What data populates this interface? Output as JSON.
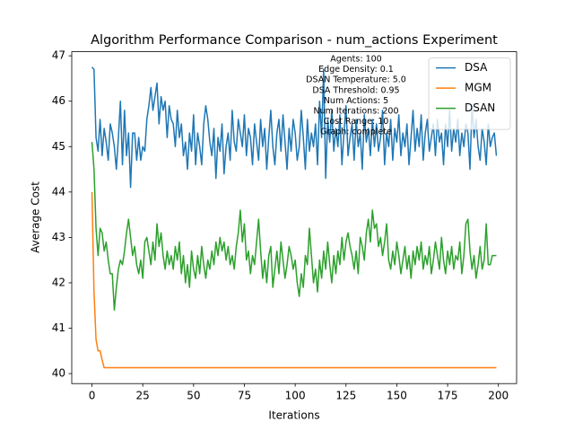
{
  "chart_data": {
    "type": "line",
    "title": "Algorithm Performance Comparison - num_actions Experiment",
    "xlabel": "Iterations",
    "ylabel": "Average Cost",
    "x": [
      0,
      1,
      2,
      3,
      4,
      5,
      6,
      7,
      8,
      9,
      10,
      11,
      12,
      13,
      14,
      15,
      16,
      17,
      18,
      19,
      20,
      21,
      22,
      23,
      24,
      25,
      26,
      27,
      28,
      29,
      30,
      31,
      32,
      33,
      34,
      35,
      36,
      37,
      38,
      39,
      40,
      41,
      42,
      43,
      44,
      45,
      46,
      47,
      48,
      49,
      50,
      51,
      52,
      53,
      54,
      55,
      56,
      57,
      58,
      59,
      60,
      61,
      62,
      63,
      64,
      65,
      66,
      67,
      68,
      69,
      70,
      71,
      72,
      73,
      74,
      75,
      76,
      77,
      78,
      79,
      80,
      81,
      82,
      83,
      84,
      85,
      86,
      87,
      88,
      89,
      90,
      91,
      92,
      93,
      94,
      95,
      96,
      97,
      98,
      99,
      100,
      101,
      102,
      103,
      104,
      105,
      106,
      107,
      108,
      109,
      110,
      111,
      112,
      113,
      114,
      115,
      116,
      117,
      118,
      119,
      120,
      121,
      122,
      123,
      124,
      125,
      126,
      127,
      128,
      129,
      130,
      131,
      132,
      133,
      134,
      135,
      136,
      137,
      138,
      139,
      140,
      141,
      142,
      143,
      144,
      145,
      146,
      147,
      148,
      149,
      150,
      151,
      152,
      153,
      154,
      155,
      156,
      157,
      158,
      159,
      160,
      161,
      162,
      163,
      164,
      165,
      166,
      167,
      168,
      169,
      170,
      171,
      172,
      173,
      174,
      175,
      176,
      177,
      178,
      179,
      180,
      181,
      182,
      183,
      184,
      185,
      186,
      187,
      188,
      189,
      190,
      191,
      192,
      193,
      194,
      195,
      196,
      197,
      198,
      199
    ],
    "xlim": [
      -9.95,
      208.95
    ],
    "xticks": [
      0,
      25,
      50,
      75,
      100,
      125,
      150,
      175,
      200
    ],
    "ylim": [
      39.78,
      47.09
    ],
    "yticks": [
      40,
      41,
      42,
      43,
      44,
      45,
      46,
      47
    ],
    "grid": false,
    "legend": "upper right",
    "series": [
      {
        "name": "DSA",
        "color": "#1f77b4",
        "values": [
          46.75,
          46.7,
          45.2,
          44.9,
          45.6,
          44.8,
          45.4,
          45.1,
          44.7,
          45.5,
          45.3,
          45.0,
          44.5,
          45.2,
          46.0,
          44.6,
          45.8,
          44.8,
          45.3,
          44.1,
          45.3,
          45.3,
          44.7,
          45.2,
          44.7,
          45.0,
          44.9,
          45.6,
          45.9,
          46.3,
          45.8,
          46.1,
          46.4,
          45.5,
          46.1,
          45.8,
          46.0,
          45.2,
          45.9,
          45.6,
          45.5,
          45.0,
          45.8,
          45.2,
          45.5,
          44.8,
          45.1,
          44.5,
          45.3,
          44.9,
          45.7,
          44.6,
          45.3,
          45.0,
          44.6,
          45.5,
          45.9,
          45.6,
          45.1,
          44.8,
          45.4,
          44.3,
          45.2,
          44.9,
          45.5,
          44.4,
          45.0,
          45.3,
          44.7,
          45.8,
          45.1,
          44.9,
          45.6,
          45.3,
          45.0,
          45.7,
          44.8,
          45.4,
          45.2,
          44.6,
          45.5,
          45.1,
          44.7,
          45.6,
          45.0,
          45.4,
          44.5,
          45.2,
          45.8,
          45.0,
          44.6,
          45.3,
          45.6,
          44.9,
          45.7,
          45.1,
          44.5,
          45.4,
          44.9,
          45.6,
          45.3,
          44.7,
          45.0,
          45.8,
          45.2,
          44.5,
          45.6,
          44.9,
          45.3,
          45.0,
          45.5,
          44.6,
          46.0,
          45.2,
          46.7,
          44.3,
          45.6,
          45.1,
          45.8,
          44.9,
          45.4,
          45.0,
          45.7,
          44.6,
          45.3,
          45.9,
          44.8,
          45.2,
          45.5,
          44.7,
          45.6,
          45.0,
          45.3,
          44.5,
          45.7,
          45.1,
          45.4,
          44.8,
          45.6,
          45.0,
          45.5,
          44.9,
          45.2,
          45.8,
          44.6,
          45.3,
          45.0,
          45.6,
          44.7,
          45.4,
          45.1,
          45.7,
          44.8,
          45.3,
          45.0,
          45.5,
          44.6,
          45.2,
          45.8,
          44.9,
          45.4,
          45.0,
          45.7,
          44.7,
          45.3,
          45.6,
          44.9,
          45.2,
          45.5,
          44.8,
          45.6,
          45.1,
          45.3,
          44.6,
          45.5,
          45.0,
          45.8,
          44.9,
          45.4,
          45.1,
          45.6,
          44.8,
          45.3,
          45.0,
          45.5,
          45.3,
          44.5,
          45.9,
          45.2,
          45.6,
          45.0,
          44.7,
          45.4,
          45.1,
          44.6,
          45.5,
          45.0,
          45.2,
          45.3,
          44.8
        ]
      },
      {
        "name": "MGM",
        "color": "#ff7f0e",
        "values": [
          44.0,
          41.8,
          40.75,
          40.5,
          40.5,
          40.3,
          40.13,
          40.13,
          40.13,
          40.13,
          40.13,
          40.13,
          40.13,
          40.13,
          40.13,
          40.13,
          40.13,
          40.13,
          40.13,
          40.13,
          40.13,
          40.13,
          40.13,
          40.13,
          40.13,
          40.13,
          40.13,
          40.13,
          40.13,
          40.13,
          40.13,
          40.13,
          40.13,
          40.13,
          40.13,
          40.13,
          40.13,
          40.13,
          40.13,
          40.13,
          40.13,
          40.13,
          40.13,
          40.13,
          40.13,
          40.13,
          40.13,
          40.13,
          40.13,
          40.13,
          40.13,
          40.13,
          40.13,
          40.13,
          40.13,
          40.13,
          40.13,
          40.13,
          40.13,
          40.13,
          40.13,
          40.13,
          40.13,
          40.13,
          40.13,
          40.13,
          40.13,
          40.13,
          40.13,
          40.13,
          40.13,
          40.13,
          40.13,
          40.13,
          40.13,
          40.13,
          40.13,
          40.13,
          40.13,
          40.13,
          40.13,
          40.13,
          40.13,
          40.13,
          40.13,
          40.13,
          40.13,
          40.13,
          40.13,
          40.13,
          40.13,
          40.13,
          40.13,
          40.13,
          40.13,
          40.13,
          40.13,
          40.13,
          40.13,
          40.13,
          40.13,
          40.13,
          40.13,
          40.13,
          40.13,
          40.13,
          40.13,
          40.13,
          40.13,
          40.13,
          40.13,
          40.13,
          40.13,
          40.13,
          40.13,
          40.13,
          40.13,
          40.13,
          40.13,
          40.13,
          40.13,
          40.13,
          40.13,
          40.13,
          40.13,
          40.13,
          40.13,
          40.13,
          40.13,
          40.13,
          40.13,
          40.13,
          40.13,
          40.13,
          40.13,
          40.13,
          40.13,
          40.13,
          40.13,
          40.13,
          40.13,
          40.13,
          40.13,
          40.13,
          40.13,
          40.13,
          40.13,
          40.13,
          40.13,
          40.13,
          40.13,
          40.13,
          40.13,
          40.13,
          40.13,
          40.13,
          40.13,
          40.13,
          40.13,
          40.13,
          40.13,
          40.13,
          40.13,
          40.13,
          40.13,
          40.13,
          40.13,
          40.13,
          40.13,
          40.13,
          40.13,
          40.13,
          40.13,
          40.13,
          40.13,
          40.13,
          40.13,
          40.13,
          40.13,
          40.13,
          40.13,
          40.13,
          40.13,
          40.13,
          40.13,
          40.13,
          40.13,
          40.13,
          40.13,
          40.13,
          40.13,
          40.13,
          40.13,
          40.13,
          40.13,
          40.13,
          40.13,
          40.13,
          40.13,
          40.13
        ]
      },
      {
        "name": "DSAN",
        "color": "#2ca02c",
        "values": [
          45.1,
          44.5,
          43.2,
          42.6,
          43.2,
          43.1,
          42.7,
          42.9,
          42.5,
          42.2,
          42.2,
          41.4,
          41.9,
          42.3,
          42.5,
          42.4,
          42.7,
          43.1,
          43.4,
          43.0,
          42.6,
          42.8,
          42.4,
          42.2,
          42.5,
          42.1,
          42.9,
          43.0,
          42.7,
          42.4,
          42.9,
          42.5,
          43.3,
          42.8,
          43.1,
          42.6,
          42.3,
          42.7,
          42.4,
          42.6,
          42.3,
          42.8,
          42.5,
          42.9,
          42.2,
          42.6,
          42.0,
          42.4,
          41.9,
          42.7,
          42.3,
          42.1,
          42.6,
          42.2,
          42.8,
          42.4,
          42.1,
          42.5,
          42.3,
          42.7,
          42.4,
          42.9,
          42.6,
          43.0,
          42.7,
          42.9,
          42.5,
          42.8,
          42.4,
          42.6,
          42.3,
          42.8,
          43.1,
          43.6,
          42.9,
          43.3,
          42.5,
          42.7,
          42.2,
          42.6,
          42.4,
          42.9,
          43.4,
          42.7,
          42.1,
          42.5,
          42.0,
          42.6,
          42.8,
          41.9,
          42.3,
          42.7,
          42.2,
          42.9,
          42.5,
          42.1,
          42.4,
          42.8,
          42.6,
          42.3,
          42.5,
          42.0,
          41.7,
          42.2,
          41.9,
          42.6,
          42.4,
          43.2,
          42.6,
          42.0,
          42.3,
          41.8,
          42.5,
          42.1,
          42.7,
          42.3,
          42.9,
          42.4,
          42.0,
          42.6,
          42.2,
          42.7,
          42.4,
          43.0,
          42.5,
          42.9,
          43.1,
          42.8,
          42.6,
          42.3,
          42.7,
          42.2,
          43.0,
          42.8,
          42.5,
          43.1,
          43.4,
          42.9,
          43.6,
          43.2,
          43.3,
          42.8,
          43.0,
          42.6,
          42.9,
          43.3,
          42.5,
          42.3,
          42.7,
          42.4,
          42.9,
          42.6,
          42.2,
          42.5,
          42.8,
          42.3,
          42.6,
          42.1,
          42.7,
          42.4,
          42.8,
          42.5,
          42.9,
          42.3,
          42.6,
          42.4,
          42.8,
          42.2,
          42.5,
          42.9,
          42.6,
          42.3,
          43.0,
          42.5,
          42.2,
          42.7,
          42.4,
          42.8,
          42.3,
          42.6,
          42.5,
          42.9,
          42.2,
          42.6,
          43.3,
          43.4,
          42.7,
          42.3,
          42.6,
          42.1,
          42.4,
          42.8,
          42.3,
          42.5,
          43.3,
          42.4,
          42.4,
          42.6,
          42.6,
          42.6
        ]
      }
    ],
    "annotation": [
      "Agents: 100",
      "Edge Density: 0.1",
      "DSAN Temperature: 5.0",
      "DSA Threshold: 0.95",
      "Num Actions: 5",
      "Num Iterations: 200",
      "Cost Range: 10",
      "Graph: complete"
    ]
  }
}
